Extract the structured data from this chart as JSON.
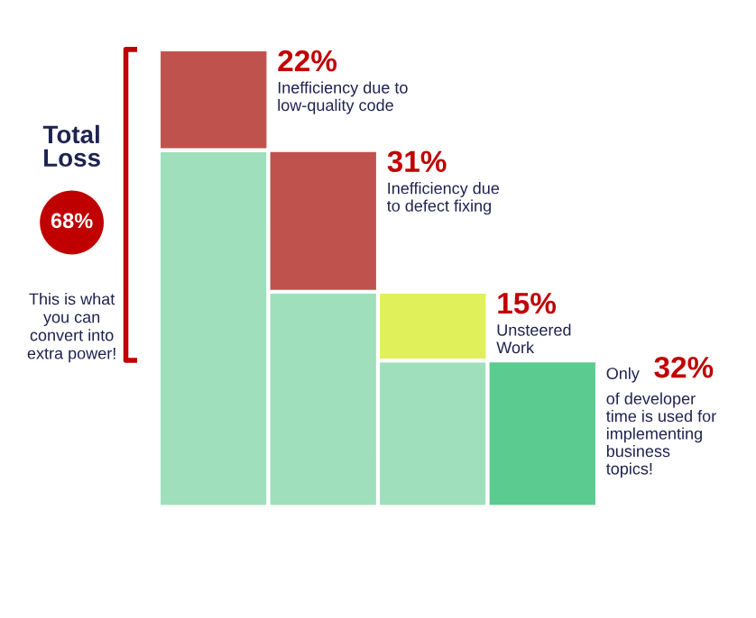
{
  "chart_data": {
    "type": "other",
    "categories": [
      null,
      null,
      null,
      null
    ],
    "values": [
      22,
      31,
      15,
      32
    ],
    "colors": [
      "#c0524e",
      "#c0524e",
      "#dff05a",
      "#5ccb8f"
    ],
    "value_labels": [
      "22%",
      "31%",
      "15%",
      "32%"
    ],
    "annotations": [
      "Inefficiency due to\nlow-quality code",
      "Inefficiency due\nto defect fixing",
      "Unsteered\nWork",
      "of developer\ntime is used for\nimplementing\nbusiness\ntopics!",
      "Only",
      "Total\nLoss",
      "68%",
      "This is what\nyou can\nconvert into\nextra power!"
    ]
  }
}
